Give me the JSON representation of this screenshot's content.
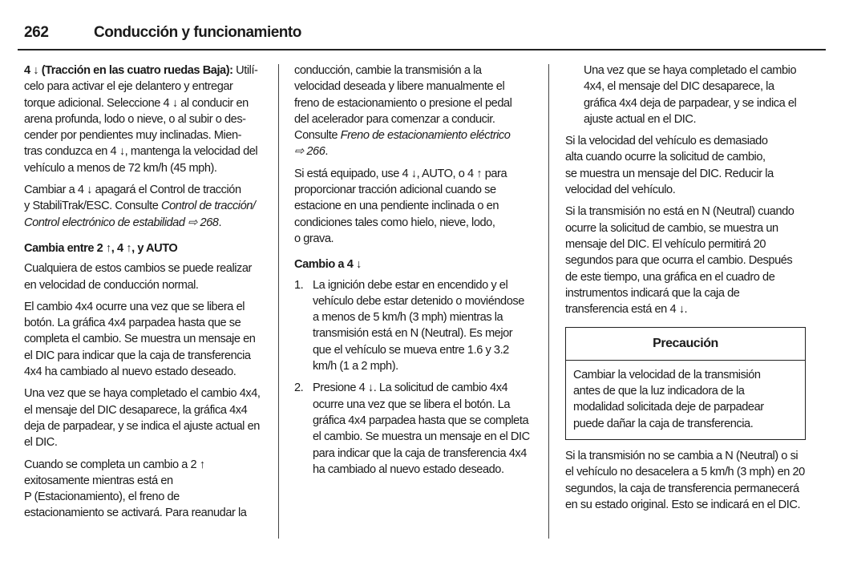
{
  "header": {
    "page_number": "262",
    "title": "Conducción y funcionamiento"
  },
  "col1": {
    "p1_bold": "4 ↓ (Tracción en las cuatro ruedas Baja):",
    "p1": " Utilí-\ncelo para activar el eje delantero y entregar\ntorque adicional. Seleccione 4 ↓ al conducir en\narena profunda, lodo o nieve, o al subir o des-\ncender por pendientes muy inclinadas. Mien-\ntras conduzca en 4 ↓, mantenga la velocidad del\nvehículo a menos de 72 km/h (45 mph).",
    "p2": "Cambiar a 4 ↓ apagará el Control de tracción\ny StabiliTrak/ESC. Consulte ",
    "p2_ref": "Control de tracción/\nControl electrónico de estabilidad ⇨ 268",
    "p2_end": ".",
    "h1": "Cambia entre 2 ↑, 4 ↑, y AUTO",
    "p3": "Cualquiera de estos cambios se puede realizar\nen velocidad de conducción normal.",
    "p4": "El cambio 4x4 ocurre una vez que se libera el\nbotón. La gráfica 4x4 parpadea hasta que se\ncompleta el cambio. Se muestra un mensaje en\nel DIC para indicar que la caja de transferencia\n4x4 ha cambiado al nuevo estado deseado.",
    "p5": "Una vez que se haya completado el cambio 4x4,\nel mensaje del DIC desaparece, la gráfica 4x4\ndeja de parpadear, y se indica el ajuste actual en\nel DIC.",
    "p6": "Cuando se completa un cambio a 2 ↑\nexitosamente mientras está en\nP (Estacionamiento), el freno de\nestacionamiento se activará. Para reanudar la"
  },
  "col2": {
    "p1": "conducción, cambie la transmisión a la\nvelocidad deseada y libere manualmente el\nfreno de estacionamiento o presione el pedal\ndel acelerador para comenzar a conducir.\nConsulte ",
    "p1_ref": "Freno de estacionamiento eléctrico\n⇨ 266",
    "p1_end": ".",
    "p2": "Si está equipado, use 4 ↓, AUTO, o 4 ↑ para\nproporcionar tracción adicional cuando se\nestacione en una pendiente inclinada o en\ncondiciones tales como hielo, nieve, lodo,\no grava.",
    "h1": "Cambio a 4 ↓",
    "steps": [
      {
        "num": "1.",
        "text": "La ignición debe estar en encendido y el\nvehículo debe estar detenido o moviéndose\na menos de 5 km/h (3 mph) mientras la\ntransmisión está en N (Neutral). Es mejor\nque el vehículo se mueva entre 1.6 y 3.2\nkm/h (1 a 2 mph)."
      },
      {
        "num": "2.",
        "text": "Presione 4 ↓. La solicitud de cambio 4x4\nocurre una vez que se libera el botón. La\ngráfica 4x4 parpadea hasta que se completa\nel cambio. Se muestra un mensaje en el DIC\npara indicar que la caja de transferencia 4x4\nha cambiado al nuevo estado deseado."
      }
    ]
  },
  "col3": {
    "p0": "Una vez que se haya completado el cambio\n4x4, el mensaje del DIC desaparece, la\ngráfica 4x4 deja de parpadear, y se indica el\najuste actual en el DIC.",
    "p1": "Si la velocidad del vehículo es demasiado\nalta cuando ocurre la solicitud de cambio,\nse muestra un mensaje del DIC. Reducir la\nvelocidad del vehículo.",
    "p2": "Si la transmisión no está en N (Neutral) cuando\nocurre la solicitud de cambio, se muestra un\nmensaje del DIC. El vehículo permitirá 20\nsegundos para que ocurra el cambio. Después\nde este tiempo, una gráfica en el cuadro de\ninstrumentos indicará que la caja de\ntransferencia está en 4 ↓.",
    "caution_title": "Precaución",
    "caution_text": "Cambiar la velocidad de la transmisión\nantes de que la luz indicadora de la\nmodalidad solicitada deje de parpadear\npuede dañar la caja de transferencia.",
    "p3": "Si la transmisión no se cambia a N (Neutral) o si\nel vehículo no desacelera a 5 km/h (3 mph) en 20\nsegundos, la caja de transferencia permanecerá\nen su estado original. Esto se indicará en el DIC."
  }
}
